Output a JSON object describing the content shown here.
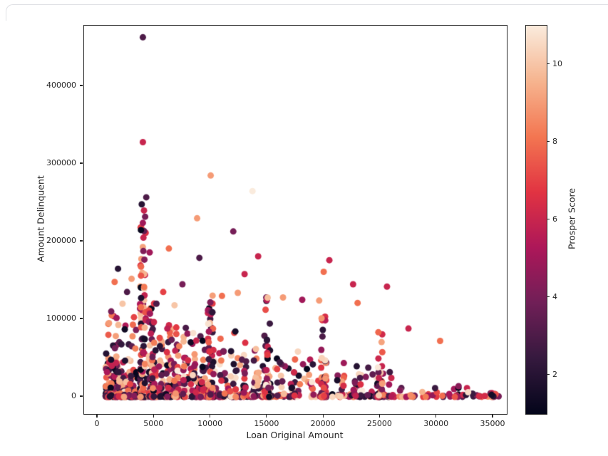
{
  "window": {
    "cell_border_color": "#dfe0e4",
    "background": "#ffffff"
  },
  "chart_data": {
    "type": "scatter",
    "title": "",
    "xlabel": "Loan Original Amount",
    "ylabel": "Amount Delinquent",
    "colorbar_label": "Prosper Score",
    "xlim": [
      -1200,
      36200
    ],
    "ylim": [
      -22000,
      478000
    ],
    "xticks": [
      0,
      5000,
      10000,
      15000,
      20000,
      25000,
      30000,
      35000
    ],
    "yticks": [
      0,
      100000,
      200000,
      300000,
      400000
    ],
    "grid": false,
    "legend_position": "right-colorbar",
    "color_range": [
      1,
      11
    ],
    "colorbar_ticks": [
      2,
      4,
      6,
      8,
      10
    ],
    "colormap_name": "rocket",
    "colormap_stops": [
      "#03051A",
      "#35193E",
      "#701F57",
      "#AD1759",
      "#E13342",
      "#F37651",
      "#F6B48F",
      "#FAEBDD"
    ],
    "point_radius": 4.5,
    "seed": 1337,
    "notable_points": [
      [
        4000,
        463000,
        3
      ],
      [
        4000,
        328000,
        6
      ],
      [
        10000,
        285000,
        9
      ],
      [
        13700,
        265000,
        11
      ],
      [
        4300,
        257000,
        3
      ],
      [
        3900,
        248000,
        2
      ],
      [
        4100,
        240000,
        6
      ],
      [
        4200,
        232000,
        4
      ],
      [
        8800,
        230000,
        9
      ],
      [
        4000,
        224000,
        5
      ],
      [
        12000,
        213000,
        4
      ],
      [
        4050,
        205000,
        6
      ],
      [
        6300,
        191000,
        8
      ],
      [
        4600,
        186000,
        5
      ],
      [
        14200,
        181000,
        6
      ],
      [
        9000,
        179000,
        3
      ],
      [
        20500,
        176000,
        6
      ],
      [
        1800,
        165000,
        2
      ],
      [
        20000,
        161000,
        8
      ],
      [
        13000,
        158000,
        6
      ],
      [
        3000,
        152000,
        9
      ],
      [
        1500,
        148000,
        8
      ],
      [
        22600,
        145000,
        6
      ],
      [
        25600,
        142000,
        6
      ],
      [
        12400,
        134000,
        9
      ],
      [
        11000,
        130000,
        8
      ],
      [
        16400,
        128000,
        9
      ],
      [
        18100,
        125000,
        5
      ],
      [
        19600,
        124000,
        9
      ],
      [
        23000,
        121000,
        8
      ],
      [
        5200,
        120000,
        3
      ],
      [
        27500,
        88000,
        6
      ],
      [
        30300,
        72000,
        8
      ],
      [
        2200,
        120000,
        10
      ],
      [
        1200,
        110000,
        4
      ],
      [
        7500,
        145000,
        4
      ],
      [
        5800,
        135000,
        7
      ],
      [
        2600,
        135000,
        3
      ],
      [
        1000,
        95000,
        9
      ],
      [
        6800,
        118000,
        10
      ]
    ],
    "clusters": [
      {
        "x": 4000,
        "jitter": 260,
        "count": 120,
        "ymax": 235000,
        "decay": 3.0
      },
      {
        "x": 4700,
        "jitter": 180,
        "count": 35,
        "ymax": 115000,
        "decay": 2.4
      },
      {
        "x": 5000,
        "jitter": 200,
        "count": 40,
        "ymax": 125000,
        "decay": 2.4
      },
      {
        "x": 5600,
        "jitter": 200,
        "count": 20,
        "ymax": 80000,
        "decay": 2.2
      },
      {
        "x": 6300,
        "jitter": 250,
        "count": 28,
        "ymax": 95000,
        "decay": 2.2
      },
      {
        "x": 7000,
        "jitter": 250,
        "count": 30,
        "ymax": 100000,
        "decay": 2.2
      },
      {
        "x": 7800,
        "jitter": 250,
        "count": 24,
        "ymax": 90000,
        "decay": 2.2
      },
      {
        "x": 8500,
        "jitter": 300,
        "count": 22,
        "ymax": 85000,
        "decay": 2.2
      },
      {
        "x": 9200,
        "jitter": 300,
        "count": 20,
        "ymax": 80000,
        "decay": 2.2
      },
      {
        "x": 10000,
        "jitter": 250,
        "count": 60,
        "ymax": 135000,
        "decay": 2.7
      },
      {
        "x": 11000,
        "jitter": 300,
        "count": 18,
        "ymax": 75000,
        "decay": 2.2
      },
      {
        "x": 12000,
        "jitter": 300,
        "count": 22,
        "ymax": 85000,
        "decay": 2.2
      },
      {
        "x": 13000,
        "jitter": 300,
        "count": 18,
        "ymax": 70000,
        "decay": 2.0
      },
      {
        "x": 14000,
        "jitter": 300,
        "count": 16,
        "ymax": 65000,
        "decay": 2.0
      },
      {
        "x": 15000,
        "jitter": 250,
        "count": 55,
        "ymax": 128000,
        "decay": 2.8
      },
      {
        "x": 16200,
        "jitter": 350,
        "count": 12,
        "ymax": 55000,
        "decay": 2.0
      },
      {
        "x": 17500,
        "jitter": 350,
        "count": 12,
        "ymax": 60000,
        "decay": 2.0
      },
      {
        "x": 18800,
        "jitter": 350,
        "count": 10,
        "ymax": 50000,
        "decay": 2.0
      },
      {
        "x": 20000,
        "jitter": 250,
        "count": 45,
        "ymax": 105000,
        "decay": 2.7
      },
      {
        "x": 21500,
        "jitter": 350,
        "count": 8,
        "ymax": 45000,
        "decay": 2.0
      },
      {
        "x": 23000,
        "jitter": 350,
        "count": 8,
        "ymax": 50000,
        "decay": 2.0
      },
      {
        "x": 25000,
        "jitter": 250,
        "count": 32,
        "ymax": 88000,
        "decay": 2.6
      },
      {
        "x": 35000,
        "jitter": 260,
        "count": 14,
        "ymax": 6000,
        "decay": 1.6
      }
    ],
    "bands": [
      {
        "xmin": 700,
        "xmax": 3600,
        "xpow": 1.2,
        "count": 150,
        "ymax": 105000,
        "decay": 2.8
      },
      {
        "xmin": 700,
        "xmax": 26000,
        "xpow": 1.6,
        "count": 300,
        "ymax": 50000,
        "decay": 3.2
      },
      {
        "xmin": 1000,
        "xmax": 35800,
        "xpow": 1.1,
        "count": 170,
        "ymax": 3500,
        "decay": 1.8
      },
      {
        "xmin": 26000,
        "xmax": 34000,
        "xpow": 1.0,
        "count": 25,
        "ymax": 15000,
        "decay": 2.0
      }
    ]
  }
}
